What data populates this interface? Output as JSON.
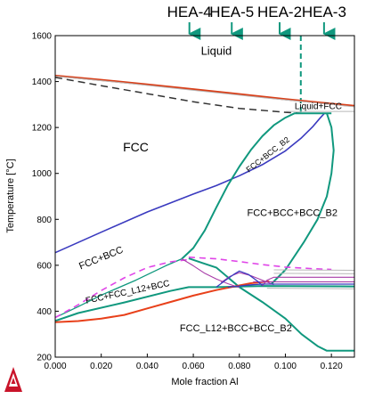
{
  "chart_data": {
    "type": "line",
    "title": "",
    "xlabel": "Mole fraction Al",
    "ylabel": "Temperature [°C]",
    "xlim": [
      0,
      0.13
    ],
    "ylim": [
      200,
      1600
    ],
    "x_ticks": [
      "0.000",
      "0.020",
      "0.040",
      "0.060",
      "0.080",
      "0.100",
      "0.120"
    ],
    "x_tick_values": [
      0,
      0.02,
      0.04,
      0.06,
      0.08,
      0.1,
      0.12
    ],
    "y_ticks": [
      "200",
      "400",
      "600",
      "800",
      "1000",
      "1200",
      "1400",
      "1600"
    ],
    "y_tick_values": [
      200,
      400,
      600,
      800,
      1000,
      1200,
      1400,
      1600
    ],
    "grid": false,
    "regions": [
      {
        "label": "Liquid",
        "x": 0.07,
        "y": 1530,
        "rotate": 0,
        "size": 13
      },
      {
        "label": "Liquid+FCC",
        "x": 0.1143,
        "y": 1290,
        "rotate": 0,
        "size": 10
      },
      {
        "label": "FCC",
        "x": 0.035,
        "y": 1110,
        "rotate": 0,
        "size": 14
      },
      {
        "label": "FCC+BCC_B2",
        "x": 0.0925,
        "y": 1080,
        "rotate": -38,
        "size": 9
      },
      {
        "label": "FCC+BCC+BCC_B2",
        "x": 0.103,
        "y": 825,
        "rotate": 0,
        "size": 11
      },
      {
        "label": "FCC+BCC",
        "x": 0.02,
        "y": 630,
        "rotate": -22,
        "size": 11
      },
      {
        "label": "FCC+FCC_L12+BCC",
        "x": 0.0315,
        "y": 482,
        "rotate": -12,
        "size": 10
      },
      {
        "label": "FCC_L12+BCC+BCC_B2",
        "x": 0.0785,
        "y": 323,
        "rotate": 0,
        "size": 11
      }
    ],
    "markers": [
      {
        "label": "HEA-4",
        "x": 0.0583
      },
      {
        "label": "HEA-5",
        "x": 0.0767
      },
      {
        "label": "HEA-2",
        "x": 0.0975
      },
      {
        "label": "HEA-3",
        "x": 0.1168
      }
    ],
    "marker_color": "#10987e",
    "composition_line": {
      "x": 0.1067,
      "y_top": 1600,
      "y_bottom": 1262,
      "color": "#10987e"
    },
    "series": [
      {
        "color": "#d9401a",
        "width": 2.4,
        "dash": "",
        "points": [
          [
            0,
            1425
          ],
          [
            0.02,
            1407
          ],
          [
            0.04,
            1387
          ],
          [
            0.06,
            1366
          ],
          [
            0.08,
            1345
          ],
          [
            0.1,
            1323
          ],
          [
            0.12,
            1303
          ],
          [
            0.13,
            1294
          ]
        ]
      },
      {
        "color": "#b8b8b8",
        "width": 1,
        "dash": "",
        "points": [
          [
            0,
            1423
          ],
          [
            0.03,
            1394
          ],
          [
            0.06,
            1362
          ],
          [
            0.09,
            1330
          ],
          [
            0.13,
            1290
          ]
        ]
      },
      {
        "color": "#333333",
        "width": 1.5,
        "dash": "8,5",
        "points": [
          [
            0,
            1418
          ],
          [
            0.02,
            1382
          ],
          [
            0.04,
            1347
          ],
          [
            0.06,
            1312
          ],
          [
            0.08,
            1283
          ],
          [
            0.1,
            1266
          ],
          [
            0.107,
            1262
          ]
        ]
      },
      {
        "color": "#3a3abf",
        "width": 1.6,
        "dash": "",
        "points": [
          [
            0,
            655
          ],
          [
            0.02,
            744
          ],
          [
            0.04,
            832
          ],
          [
            0.06,
            910
          ],
          [
            0.07,
            947
          ],
          [
            0.08,
            990
          ],
          [
            0.09,
            1038
          ],
          [
            0.1,
            1098
          ],
          [
            0.107,
            1155
          ],
          [
            0.112,
            1205
          ],
          [
            0.115,
            1240
          ],
          [
            0.117,
            1262
          ]
        ]
      },
      {
        "color": "#10987e",
        "width": 2,
        "dash": "",
        "points": [
          [
            0.055,
            628
          ],
          [
            0.06,
            675
          ],
          [
            0.065,
            752
          ],
          [
            0.07,
            852
          ],
          [
            0.075,
            948
          ],
          [
            0.08,
            1030
          ],
          [
            0.085,
            1102
          ],
          [
            0.09,
            1162
          ],
          [
            0.095,
            1210
          ],
          [
            0.1,
            1243
          ],
          [
            0.104,
            1262
          ],
          [
            0.12,
            1262
          ]
        ]
      },
      {
        "color": "#10987e",
        "width": 2,
        "dash": "",
        "points": [
          [
            0.058,
            630
          ],
          [
            0.064,
            610
          ],
          [
            0.07,
            590
          ],
          [
            0.075,
            548
          ],
          [
            0.08,
            505
          ],
          [
            0.09,
            440
          ],
          [
            0.1,
            368
          ],
          [
            0.107,
            300
          ],
          [
            0.114,
            248
          ],
          [
            0.118,
            228
          ],
          [
            0.13,
            228
          ]
        ]
      },
      {
        "color": "#10987e",
        "width": 2,
        "dash": "",
        "points": [
          [
            0,
            358
          ],
          [
            0.01,
            392
          ],
          [
            0.03,
            438
          ],
          [
            0.05,
            488
          ],
          [
            0.058,
            505
          ],
          [
            0.07,
            505
          ],
          [
            0.08,
            507
          ],
          [
            0.09,
            510
          ],
          [
            0.13,
            508
          ]
        ]
      },
      {
        "color": "#10987e",
        "width": 1.3,
        "dash": "",
        "points": [
          [
            0,
            372
          ],
          [
            0.01,
            420
          ],
          [
            0.02,
            470
          ],
          [
            0.035,
            535
          ],
          [
            0.048,
            598
          ],
          [
            0.055,
            628
          ]
        ]
      },
      {
        "color": "#10987e",
        "width": 2,
        "dash": "",
        "points": [
          [
            0.118,
            1262
          ],
          [
            0.12,
            1200
          ],
          [
            0.121,
            1100
          ],
          [
            0.12,
            1000
          ],
          [
            0.118,
            900
          ],
          [
            0.114,
            800
          ],
          [
            0.108,
            700
          ],
          [
            0.1,
            580
          ],
          [
            0.094,
            520
          ]
        ]
      },
      {
        "color": "#e8401a",
        "width": 2,
        "dash": "",
        "points": [
          [
            0,
            352
          ],
          [
            0.01,
            357
          ],
          [
            0.02,
            368
          ],
          [
            0.03,
            384
          ],
          [
            0.04,
            412
          ],
          [
            0.05,
            440
          ],
          [
            0.06,
            468
          ],
          [
            0.07,
            492
          ],
          [
            0.08,
            512
          ],
          [
            0.085,
            522
          ],
          [
            0.093,
            530
          ]
        ]
      },
      {
        "color": "#e045e8",
        "width": 1.6,
        "dash": "7,5",
        "points": [
          [
            0,
            372
          ],
          [
            0.01,
            428
          ],
          [
            0.02,
            490
          ],
          [
            0.03,
            545
          ],
          [
            0.04,
            590
          ],
          [
            0.05,
            615
          ],
          [
            0.058,
            625
          ]
        ]
      },
      {
        "color": "#e045e8",
        "width": 1.6,
        "dash": "7,5",
        "points": [
          [
            0.058,
            635
          ],
          [
            0.07,
            628
          ],
          [
            0.08,
            616
          ],
          [
            0.09,
            603
          ],
          [
            0.1,
            592
          ],
          [
            0.112,
            585
          ],
          [
            0.12,
            582
          ]
        ]
      },
      {
        "color": "#a83ca8",
        "width": 1.1,
        "dash": "",
        "points": [
          [
            0.055,
            628
          ],
          [
            0.06,
            598
          ],
          [
            0.065,
            565
          ],
          [
            0.07,
            540
          ],
          [
            0.075,
            520
          ],
          [
            0.08,
            503
          ]
        ]
      },
      {
        "color": "#a83ca8",
        "width": 1.1,
        "dash": "",
        "points": [
          [
            0.072,
            525
          ],
          [
            0.076,
            552
          ],
          [
            0.08,
            568
          ],
          [
            0.085,
            555
          ],
          [
            0.09,
            535
          ],
          [
            0.095,
            515
          ]
        ]
      },
      {
        "color": "#a83ca8",
        "width": 1.1,
        "dash": "",
        "points": [
          [
            0.09,
            510
          ],
          [
            0.092,
            535
          ],
          [
            0.095,
            548
          ],
          [
            0.13,
            548
          ]
        ]
      },
      {
        "color": "#a83ca8",
        "width": 1.1,
        "dash": "",
        "points": [
          [
            0.086,
            528
          ],
          [
            0.13,
            528
          ]
        ]
      },
      {
        "color": "#3a3abf",
        "width": 1.3,
        "dash": "",
        "points": [
          [
            0.07,
            505
          ],
          [
            0.074,
            535
          ],
          [
            0.078,
            563
          ],
          [
            0.08,
            575
          ],
          [
            0.084,
            560
          ],
          [
            0.088,
            530
          ],
          [
            0.09,
            512
          ]
        ]
      },
      {
        "color": "#3a3abf",
        "width": 1.3,
        "dash": "",
        "points": [
          [
            0.075,
            505
          ],
          [
            0.08,
            510
          ],
          [
            0.085,
            515
          ],
          [
            0.09,
            518
          ],
          [
            0.13,
            518
          ]
        ]
      },
      {
        "color": "#b8b8b8",
        "width": 1,
        "dash": "",
        "points": [
          [
            0.095,
            580
          ],
          [
            0.13,
            578
          ]
        ]
      },
      {
        "color": "#b8b8b8",
        "width": 1,
        "dash": "",
        "points": [
          [
            0.095,
            565
          ],
          [
            0.13,
            563
          ]
        ]
      },
      {
        "color": "#b8b8b8",
        "width": 1,
        "dash": "",
        "points": [
          [
            0.092,
            500
          ],
          [
            0.13,
            498
          ]
        ]
      },
      {
        "color": "#b8b8b8",
        "width": 1,
        "dash": "",
        "points": [
          [
            0.1,
            1270
          ],
          [
            0.13,
            1270
          ]
        ]
      }
    ]
  },
  "logo": {
    "name": "thermo-calc-logo"
  }
}
